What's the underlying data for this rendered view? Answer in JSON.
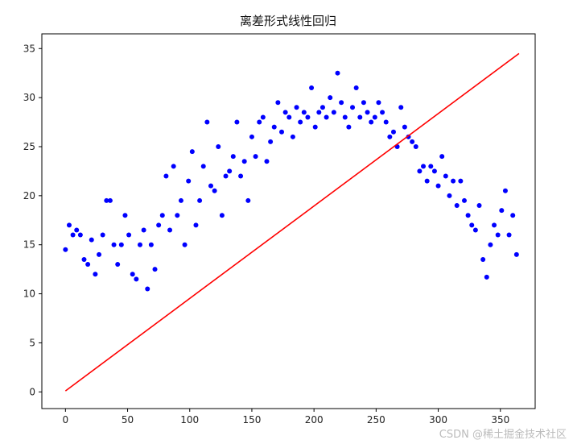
{
  "chart_data": {
    "type": "scatter",
    "title": "离差形式线性回归",
    "xlim": [
      -19,
      378
    ],
    "ylim": [
      -1.7,
      36.5
    ],
    "xticks": [
      0,
      50,
      100,
      150,
      200,
      250,
      300,
      350
    ],
    "yticks": [
      0,
      5,
      10,
      15,
      20,
      25,
      30,
      35
    ],
    "grid": false,
    "scatter_color": "#0000ff",
    "line_color": "#ff0000",
    "points": [
      [
        0,
        14.5
      ],
      [
        3,
        17
      ],
      [
        6,
        16
      ],
      [
        9,
        16.5
      ],
      [
        12,
        16
      ],
      [
        15,
        13.5
      ],
      [
        18,
        13
      ],
      [
        21,
        15.5
      ],
      [
        24,
        12
      ],
      [
        27,
        14
      ],
      [
        30,
        16
      ],
      [
        33,
        19.5
      ],
      [
        36,
        19.5
      ],
      [
        39,
        15
      ],
      [
        42,
        13
      ],
      [
        45,
        15
      ],
      [
        48,
        18
      ],
      [
        51,
        16
      ],
      [
        54,
        12
      ],
      [
        57,
        11.5
      ],
      [
        60,
        15
      ],
      [
        63,
        16.5
      ],
      [
        66,
        10.5
      ],
      [
        69,
        15
      ],
      [
        72,
        12.5
      ],
      [
        75,
        17
      ],
      [
        78,
        18
      ],
      [
        81,
        22
      ],
      [
        84,
        16.5
      ],
      [
        87,
        23
      ],
      [
        90,
        18
      ],
      [
        93,
        19.5
      ],
      [
        96,
        15
      ],
      [
        99,
        21.5
      ],
      [
        102,
        24.5
      ],
      [
        105,
        17
      ],
      [
        108,
        19.5
      ],
      [
        111,
        23
      ],
      [
        114,
        27.5
      ],
      [
        117,
        21
      ],
      [
        120,
        20.5
      ],
      [
        123,
        25
      ],
      [
        126,
        18
      ],
      [
        129,
        22
      ],
      [
        132,
        22.5
      ],
      [
        135,
        24
      ],
      [
        138,
        27.5
      ],
      [
        141,
        22
      ],
      [
        144,
        23.5
      ],
      [
        147,
        19.5
      ],
      [
        150,
        26
      ],
      [
        153,
        24
      ],
      [
        156,
        27.5
      ],
      [
        159,
        28
      ],
      [
        162,
        23.5
      ],
      [
        165,
        25.5
      ],
      [
        168,
        27
      ],
      [
        171,
        29.5
      ],
      [
        174,
        26.5
      ],
      [
        177,
        28.5
      ],
      [
        180,
        28
      ],
      [
        183,
        26
      ],
      [
        186,
        29
      ],
      [
        189,
        27.5
      ],
      [
        192,
        28.5
      ],
      [
        195,
        28
      ],
      [
        198,
        31
      ],
      [
        201,
        27
      ],
      [
        204,
        28.5
      ],
      [
        207,
        29
      ],
      [
        210,
        28
      ],
      [
        213,
        30
      ],
      [
        216,
        28.5
      ],
      [
        219,
        32.5
      ],
      [
        222,
        29.5
      ],
      [
        225,
        28
      ],
      [
        228,
        27
      ],
      [
        231,
        29
      ],
      [
        234,
        31
      ],
      [
        237,
        28
      ],
      [
        240,
        29.5
      ],
      [
        243,
        28.5
      ],
      [
        246,
        27.5
      ],
      [
        249,
        28
      ],
      [
        252,
        29.5
      ],
      [
        255,
        28.5
      ],
      [
        258,
        27.5
      ],
      [
        261,
        26
      ],
      [
        264,
        26.5
      ],
      [
        267,
        25
      ],
      [
        270,
        29
      ],
      [
        273,
        27
      ],
      [
        276,
        26
      ],
      [
        279,
        25.5
      ],
      [
        282,
        25
      ],
      [
        285,
        22.5
      ],
      [
        288,
        23
      ],
      [
        291,
        21.5
      ],
      [
        294,
        23
      ],
      [
        297,
        22.5
      ],
      [
        300,
        21
      ],
      [
        303,
        24
      ],
      [
        306,
        22
      ],
      [
        309,
        20
      ],
      [
        312,
        21.5
      ],
      [
        315,
        19
      ],
      [
        318,
        21.5
      ],
      [
        321,
        19.5
      ],
      [
        324,
        18
      ],
      [
        327,
        17
      ],
      [
        330,
        16.5
      ],
      [
        333,
        19
      ],
      [
        336,
        13.5
      ],
      [
        339,
        11.7
      ],
      [
        342,
        15
      ],
      [
        345,
        17
      ],
      [
        348,
        16
      ],
      [
        351,
        18.5
      ],
      [
        354,
        20.5
      ],
      [
        357,
        16
      ],
      [
        360,
        18
      ],
      [
        363,
        14
      ]
    ],
    "regression_line": [
      [
        0,
        0.1
      ],
      [
        365,
        34.5
      ]
    ]
  },
  "watermark": "CSDN @稀土掘金技术社区"
}
